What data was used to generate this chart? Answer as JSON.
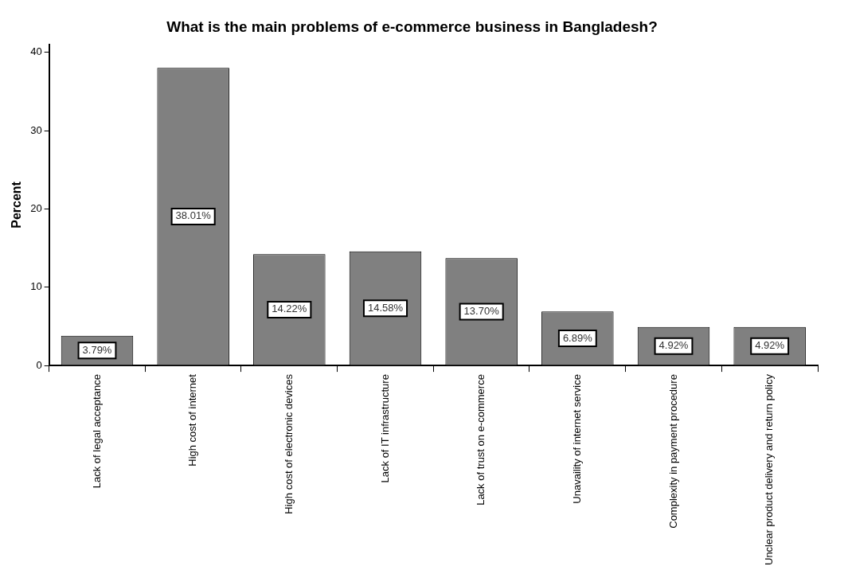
{
  "chart_data": {
    "type": "bar",
    "title": "What is the main problems of e-commerce business in Bangladesh?",
    "ylabel": "Percent",
    "categories": [
      "Lack of legal acceptance",
      "High cost of internet",
      "High cost of electronic devices",
      "Lack of IT infrastructure",
      "Lack of trust on e-commerce",
      "Unavaility of internet service",
      "Complexity in payment procedure",
      "Unclear product delivery and return policy"
    ],
    "values": [
      3.79,
      38.01,
      14.22,
      14.58,
      13.7,
      6.89,
      4.92,
      4.92
    ],
    "value_labels": [
      "3.79%",
      "38.01%",
      "14.22%",
      "14.58%",
      "13.70%",
      "6.89%",
      "4.92%",
      "4.92%"
    ],
    "color": "#808080",
    "ylim": [
      0,
      41
    ],
    "yticks": [
      0,
      10,
      20,
      30,
      40
    ],
    "grid": false,
    "legend": false
  }
}
